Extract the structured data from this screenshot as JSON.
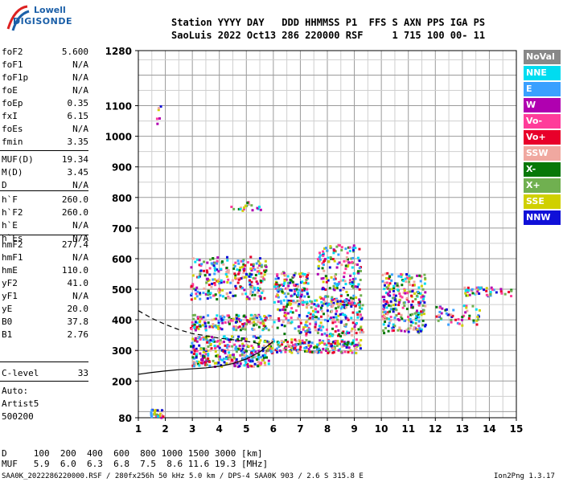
{
  "logo": {
    "line1": "Lowell",
    "line2": "DIGISONDE"
  },
  "header": {
    "labels": "Station YYYY DAY   DDD HHMMSS P1  FFS S AXN PPS IGA PS",
    "values": "SaoLuis 2022 Oct13 286 220000 RSF     1 715 100 00- 11"
  },
  "params": [
    {
      "key": "foF2",
      "value": "5.600"
    },
    {
      "key": "foF1",
      "value": "N/A"
    },
    {
      "key": "foF1p",
      "value": "N/A"
    },
    {
      "key": "foE",
      "value": "N/A"
    },
    {
      "key": "foEp",
      "value": "0.35"
    },
    {
      "key": "fxI",
      "value": "6.15"
    },
    {
      "key": "foEs",
      "value": "N/A"
    },
    {
      "key": "fmin",
      "value": "3.35"
    },
    {
      "key": "MUF(D)",
      "value": "19.34"
    },
    {
      "key": "M(D)",
      "value": "3.45"
    },
    {
      "key": "D",
      "value": "N/A"
    },
    {
      "key": "h`F",
      "value": "260.0"
    },
    {
      "key": "h`F2",
      "value": "260.0"
    },
    {
      "key": "h`E",
      "value": "N/A"
    },
    {
      "key": "h`Es",
      "value": "N/A"
    },
    {
      "key": "hmF2",
      "value": "277.4"
    },
    {
      "key": "hmF1",
      "value": "N/A"
    },
    {
      "key": "hmE",
      "value": "110.0"
    },
    {
      "key": "yF2",
      "value": "41.0"
    },
    {
      "key": "yF1",
      "value": "N/A"
    },
    {
      "key": "yE",
      "value": "20.0"
    },
    {
      "key": "B0",
      "value": "37.8"
    },
    {
      "key": "B1",
      "value": "2.76"
    },
    {
      "key": "C-level",
      "value": "33"
    },
    {
      "key": "Auto:",
      "value": ""
    },
    {
      "key": "Artist5",
      "value": ""
    },
    {
      "key": "500200",
      "value": ""
    }
  ],
  "legend": [
    {
      "label": "NoVal",
      "color": "#888888"
    },
    {
      "label": "NNE",
      "color": "#00dcf0"
    },
    {
      "label": "E",
      "color": "#3aa0ff"
    },
    {
      "label": "W",
      "color": "#b000b0"
    },
    {
      "label": "Vo-",
      "color": "#ff3c9a"
    },
    {
      "label": "Vo+",
      "color": "#e8002a"
    },
    {
      "label": "SSW",
      "color": "#f0a8a0"
    },
    {
      "label": "X-",
      "color": "#087808"
    },
    {
      "label": "X+",
      "color": "#70b050"
    },
    {
      "label": "SSE",
      "color": "#d0d000"
    },
    {
      "label": "NNW",
      "color": "#1010d8"
    }
  ],
  "chart_data": {
    "type": "scatter",
    "title": "",
    "xlabel": "",
    "ylabel": "",
    "xlim": [
      1,
      15
    ],
    "ylim": [
      80,
      1280
    ],
    "x_ticks": [
      "1",
      "2",
      "3",
      "4",
      "5",
      "6",
      "7",
      "8",
      "9",
      "10",
      "11",
      "12",
      "13",
      "14",
      "15"
    ],
    "y_ticks": [
      "80",
      "200",
      "300",
      "400",
      "500",
      "600",
      "700",
      "800",
      "900",
      "1000",
      "1100",
      "1280"
    ],
    "y_tick_values": [
      80,
      200,
      300,
      400,
      500,
      600,
      700,
      800,
      900,
      1000,
      1100,
      1280
    ],
    "echo_clusters": [
      {
        "x0": 2.9,
        "x1": 5.7,
        "y0": 470,
        "y1": 610,
        "n": 260
      },
      {
        "x0": 6.0,
        "x1": 7.3,
        "y0": 460,
        "y1": 560,
        "n": 120
      },
      {
        "x0": 7.6,
        "x1": 9.2,
        "y0": 450,
        "y1": 650,
        "n": 200
      },
      {
        "x0": 2.9,
        "x1": 6.0,
        "y0": 370,
        "y1": 420,
        "n": 160
      },
      {
        "x0": 6.1,
        "x1": 9.3,
        "y0": 350,
        "y1": 470,
        "n": 260
      },
      {
        "x0": 2.9,
        "x1": 5.8,
        "y0": 250,
        "y1": 350,
        "n": 320
      },
      {
        "x0": 5.8,
        "x1": 9.2,
        "y0": 295,
        "y1": 340,
        "n": 200
      },
      {
        "x0": 10.0,
        "x1": 11.6,
        "y0": 360,
        "y1": 560,
        "n": 260
      },
      {
        "x0": 12.0,
        "x1": 13.6,
        "y0": 385,
        "y1": 450,
        "n": 50
      },
      {
        "x0": 13.0,
        "x1": 14.8,
        "y0": 480,
        "y1": 510,
        "n": 45
      },
      {
        "x0": 4.4,
        "x1": 5.5,
        "y0": 760,
        "y1": 790,
        "n": 20
      },
      {
        "x0": 1.4,
        "x1": 1.9,
        "y0": 82,
        "y1": 110,
        "n": 25
      },
      {
        "x0": 1.5,
        "x1": 1.8,
        "y0": 1040,
        "y1": 1120,
        "n": 6
      }
    ],
    "traces": [
      {
        "name": "",
        "style": "solid",
        "x": [
          1.0,
          1.5,
          2.0,
          2.5,
          3.0,
          3.5,
          4.0,
          4.5,
          5.0,
          5.5,
          6.0
        ],
        "y": [
          222,
          228,
          233,
          237,
          240,
          243,
          248,
          257,
          272,
          295,
          330
        ]
      },
      {
        "name": "",
        "style": "dashed",
        "x": [
          1.0,
          1.5,
          2.0,
          2.5,
          3.0,
          3.5,
          4.0,
          4.5,
          5.0,
          5.5
        ],
        "y": [
          430,
          405,
          385,
          368,
          355,
          348,
          340,
          335,
          330,
          322
        ]
      }
    ]
  },
  "bottom": {
    "row1": "D     100  200  400  600  800 1000 1500 3000 [km]",
    "row2": "MUF   5.9  6.0  6.3  6.8  7.5  8.6 11.6 19.3 [MHz]"
  },
  "footer": {
    "left": "SAA0K_2022286220000.RSF / 280fx256h 50 kHz 5.0 km / DPS-4 SAA0K 903 / 2.6 S 315.8 E",
    "right": "Ion2Png 1.3.17"
  }
}
